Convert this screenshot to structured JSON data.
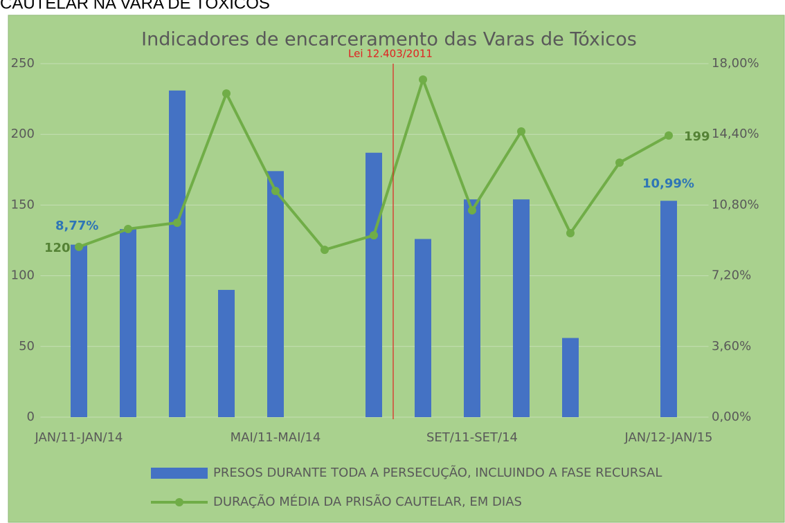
{
  "page_header": "CAUTELAR NA VARA DE TÓXICOS",
  "chart_data": {
    "type": "bar",
    "title": "Indicadores de encarceramento das Varas de Tóxicos",
    "categories": [
      "JAN/11-JAN/14",
      null,
      null,
      null,
      "MAI/11-MAI/14",
      null,
      null,
      null,
      "SET/11-SET/14",
      null,
      null,
      null,
      "JAN/12-JAN/15"
    ],
    "series": [
      {
        "name": "PRESOS DURANTE TODA A PERSECUÇÃO, INCLUINDO A FASE RECURSAL",
        "type": "bar",
        "color": "#4472c4",
        "values": [
          122,
          133,
          231,
          90,
          174,
          null,
          187,
          126,
          154,
          154,
          56,
          null,
          153
        ]
      },
      {
        "name": "DURAÇÃO MÉDIA DA PRISÃO CAUTELAR, EM DIAS",
        "type": "line",
        "axis": "y2",
        "color": "#70ad47",
        "values": [
          8.67,
          9.58,
          9.9,
          16.48,
          11.52,
          8.52,
          9.26,
          17.19,
          10.53,
          14.55,
          9.37,
          12.96,
          14.34
        ]
      }
    ],
    "ylim": [
      0,
      250
    ],
    "yticks": [
      0,
      50,
      100,
      150,
      200,
      250
    ],
    "y2lim": [
      0,
      18
    ],
    "y2ticks": [
      {
        "value": 0,
        "label": "0,00%"
      },
      {
        "value": 3.6,
        "label": "3,60%"
      },
      {
        "value": 7.2,
        "label": "7,20%"
      },
      {
        "value": 10.8,
        "label": "10,80%"
      },
      {
        "value": 14.4,
        "label": "14,40%"
      },
      {
        "value": 18,
        "label": "18,00%"
      }
    ],
    "grid": true,
    "legend": "bottom",
    "annotations": [
      "Lei 12.403/2011",
      "8,77%",
      "120",
      "10,99%",
      "199"
    ]
  }
}
